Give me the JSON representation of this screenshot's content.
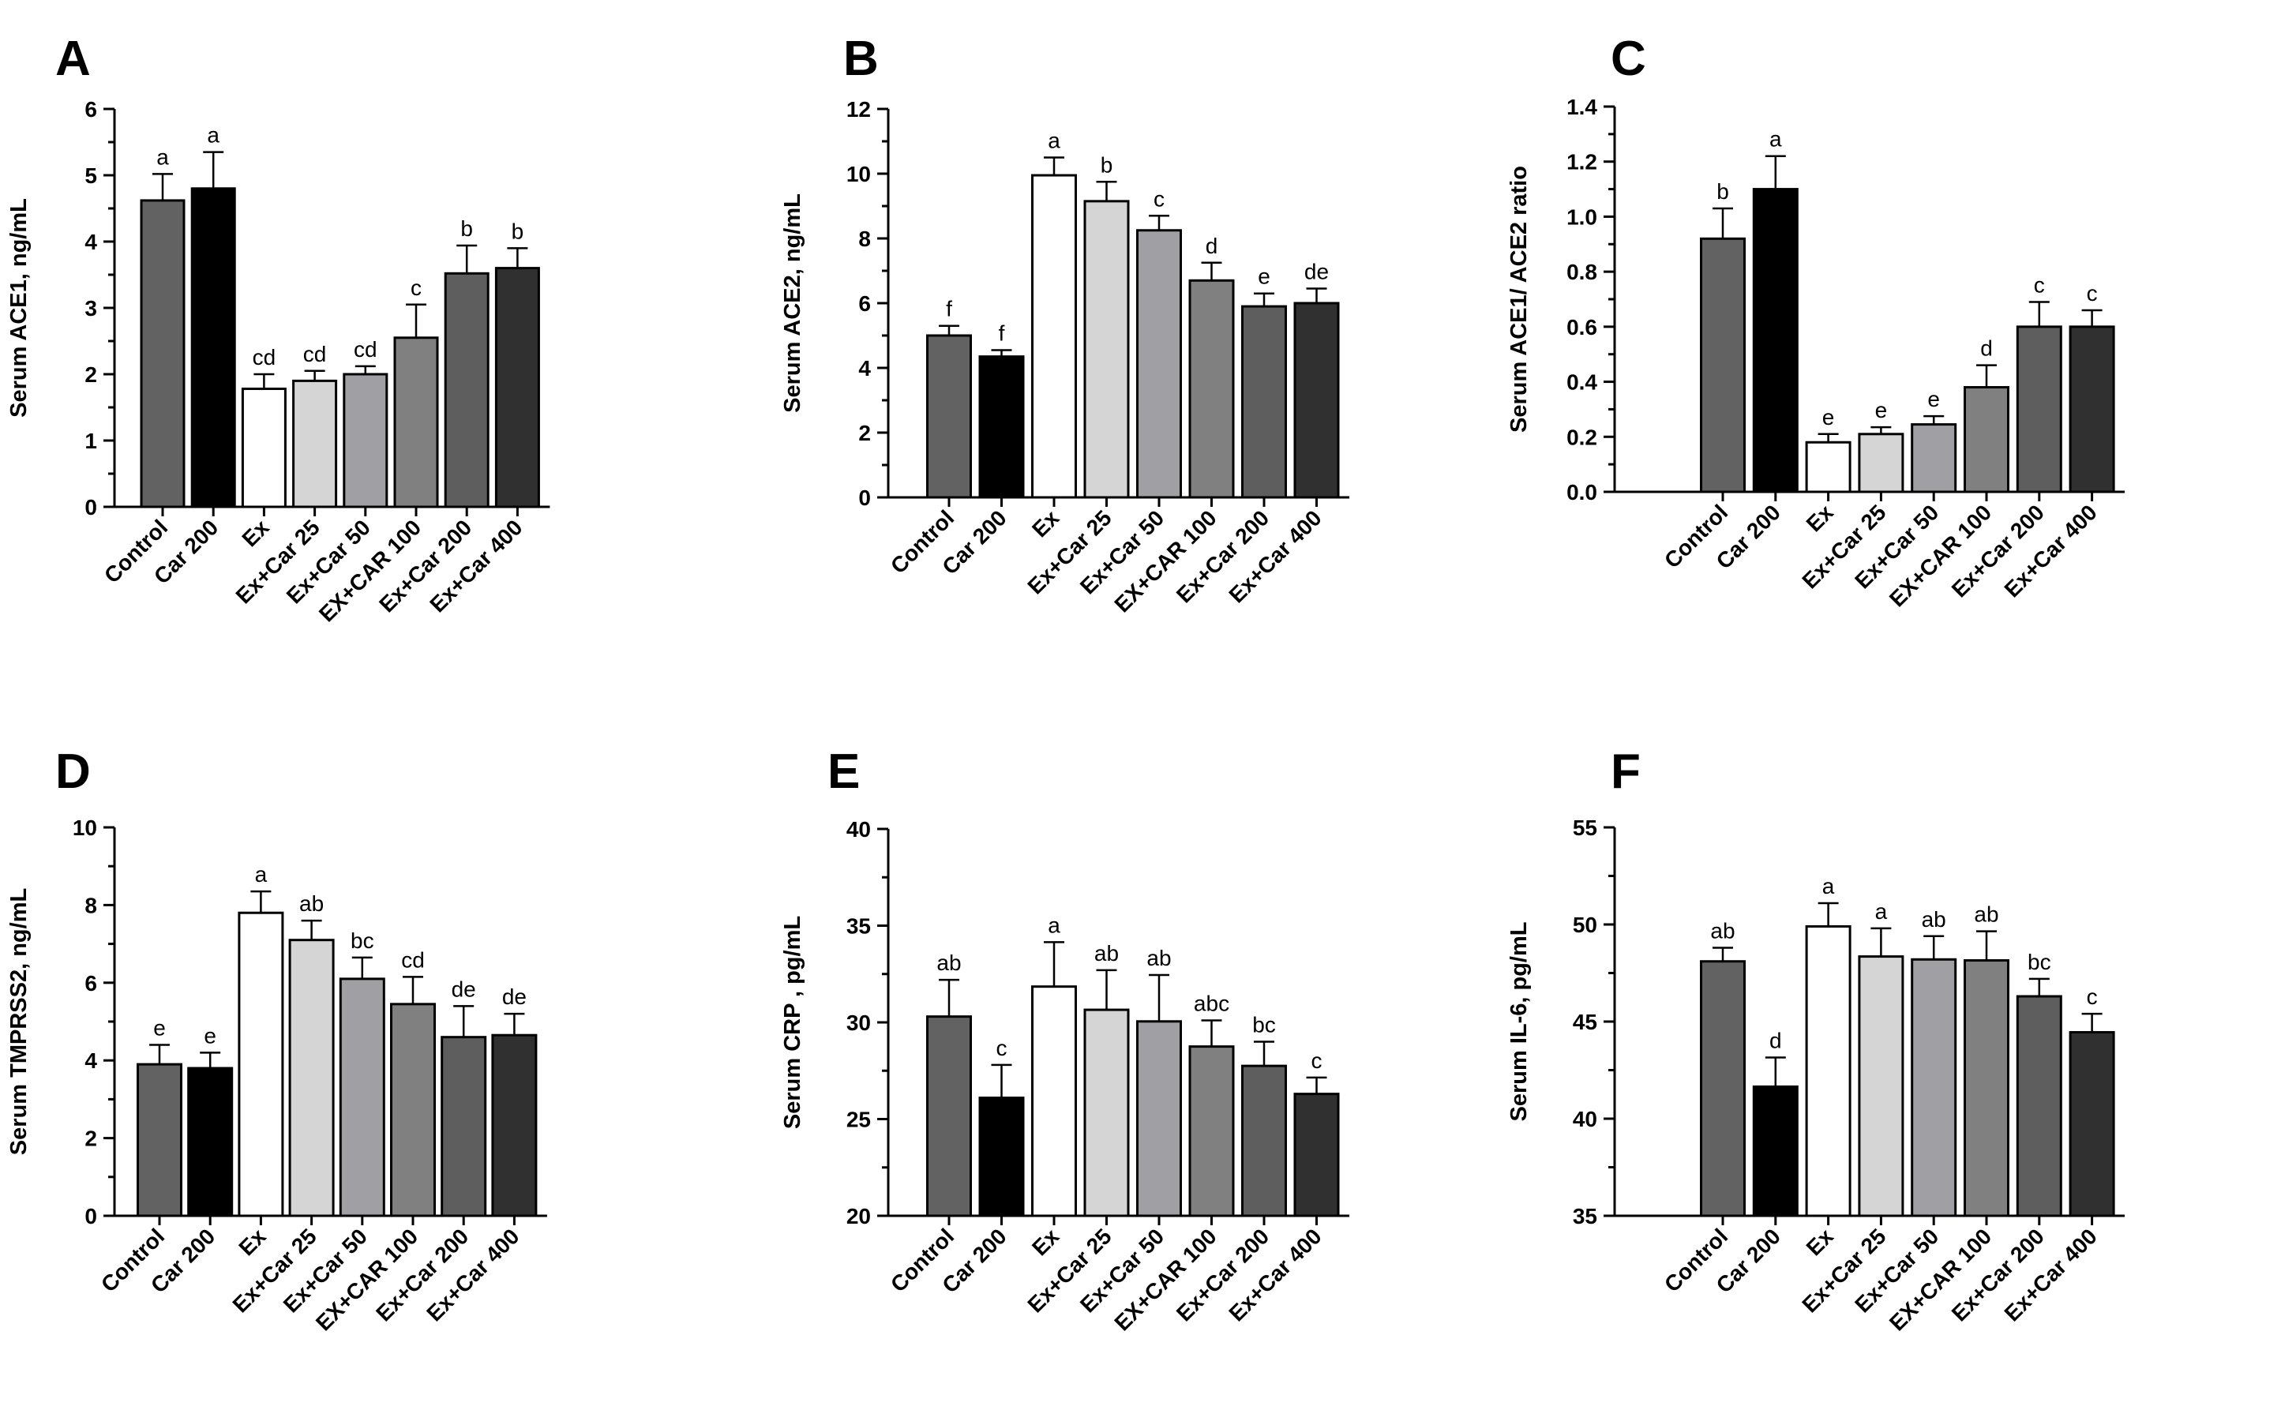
{
  "chart_data": [
    {
      "type": "bar",
      "panel": "A",
      "ylabel": "Serum ACE1, ng/mL",
      "ylim": [
        0,
        6
      ],
      "yticks": [
        "0",
        "1",
        "2",
        "3",
        "4",
        "5",
        "6"
      ],
      "categories": [
        "Control",
        "Car 200",
        "Ex",
        "Ex+Car 25",
        "Ex+Car 50",
        "EX+CAR 100",
        "Ex+Car 200",
        "Ex+Car 400"
      ],
      "values": [
        4.62,
        4.8,
        1.78,
        1.9,
        2.0,
        2.55,
        3.52,
        3.6
      ],
      "errors": [
        0.4,
        0.55,
        0.22,
        0.15,
        0.12,
        0.5,
        0.42,
        0.3
      ],
      "sig_labels": [
        "a",
        "a",
        "cd",
        "cd",
        "cd",
        "c",
        "b",
        "b"
      ],
      "colors": [
        "#626262",
        "#000000",
        "#ffffff",
        "#d5d5d5",
        "#a0a0a4",
        "#808080",
        "#5e5e5e",
        "#303030"
      ]
    },
    {
      "type": "bar",
      "panel": "B",
      "ylabel": "Serum ACE2, ng/mL",
      "ylim": [
        0,
        12
      ],
      "yticks": [
        "0",
        "2",
        "4",
        "6",
        "8",
        "10",
        "12"
      ],
      "categories": [
        "Control",
        "Car 200",
        "Ex",
        "Ex+Car 25",
        "Ex+Car 50",
        "EX+CAR 100",
        "Ex+Car 200",
        "Ex+Car 400"
      ],
      "values": [
        5.0,
        4.35,
        9.95,
        9.15,
        8.25,
        6.7,
        5.9,
        6.0
      ],
      "errors": [
        0.3,
        0.2,
        0.55,
        0.6,
        0.45,
        0.55,
        0.4,
        0.45
      ],
      "sig_labels": [
        "f",
        "f",
        "a",
        "b",
        "c",
        "d",
        "e",
        "de"
      ],
      "colors": [
        "#626262",
        "#000000",
        "#ffffff",
        "#d5d5d5",
        "#a0a0a4",
        "#808080",
        "#5e5e5e",
        "#303030"
      ]
    },
    {
      "type": "bar",
      "panel": "C",
      "ylabel": "Serum ACE1/ ACE2 ratio",
      "ylim": [
        0,
        1.4
      ],
      "yticks": [
        "0.0",
        "0.2",
        "0.4",
        "0.6",
        "0.8",
        "1.0",
        "1.2",
        "1.4"
      ],
      "categories": [
        "Control",
        "Car 200",
        "Ex",
        "Ex+Car 25",
        "Ex+Car 50",
        "EX+CAR 100",
        "Ex+Car 200",
        "Ex+Car 400"
      ],
      "values": [
        0.92,
        1.1,
        0.18,
        0.21,
        0.245,
        0.38,
        0.6,
        0.6
      ],
      "errors": [
        0.11,
        0.12,
        0.03,
        0.025,
        0.03,
        0.08,
        0.09,
        0.06
      ],
      "sig_labels": [
        "b",
        "a",
        "e",
        "e",
        "e",
        "d",
        "c",
        "c"
      ],
      "colors": [
        "#626262",
        "#000000",
        "#ffffff",
        "#d5d5d5",
        "#a0a0a4",
        "#808080",
        "#5e5e5e",
        "#303030"
      ]
    },
    {
      "type": "bar",
      "panel": "D",
      "ylabel": "Serum TMPRSS2, ng/mL",
      "ylim": [
        0,
        10
      ],
      "yticks": [
        "0",
        "2",
        "4",
        "6",
        "8",
        "10"
      ],
      "categories": [
        "Control",
        "Car 200",
        "Ex",
        "Ex+Car 25",
        "Ex+Car 50",
        "EX+CAR 100",
        "Ex+Car 200",
        "Ex+Car 400"
      ],
      "values": [
        3.9,
        3.8,
        7.8,
        7.1,
        6.1,
        5.45,
        4.6,
        4.65
      ],
      "errors": [
        0.5,
        0.4,
        0.55,
        0.5,
        0.55,
        0.7,
        0.8,
        0.55
      ],
      "sig_labels": [
        "e",
        "e",
        "a",
        "ab",
        "bc",
        "cd",
        "de",
        "de"
      ],
      "colors": [
        "#626262",
        "#000000",
        "#ffffff",
        "#d5d5d5",
        "#a0a0a4",
        "#808080",
        "#5e5e5e",
        "#303030"
      ]
    },
    {
      "type": "bar",
      "panel": "E",
      "ylabel": "Serum CRP , pg/mL",
      "ylim": [
        20,
        40
      ],
      "yticks": [
        "20",
        "25",
        "30",
        "35",
        "40"
      ],
      "categories": [
        "Control",
        "Car 200",
        "Ex",
        "Ex+Car 25",
        "Ex+Car 50",
        "EX+CAR 100",
        "Ex+Car 200",
        "Ex+Car 400"
      ],
      "values": [
        30.3,
        26.1,
        31.85,
        30.65,
        30.05,
        28.75,
        27.75,
        26.3
      ],
      "errors": [
        1.9,
        1.7,
        2.3,
        2.05,
        2.4,
        1.35,
        1.25,
        0.85
      ],
      "sig_labels": [
        "ab",
        "c",
        "a",
        "ab",
        "ab",
        "abc",
        "bc",
        "c"
      ],
      "colors": [
        "#626262",
        "#000000",
        "#ffffff",
        "#d5d5d5",
        "#a0a0a4",
        "#808080",
        "#5e5e5e",
        "#303030"
      ]
    },
    {
      "type": "bar",
      "panel": "F",
      "ylabel": "Serum IL-6, pg/mL",
      "ylim": [
        35,
        55
      ],
      "yticks": [
        "35",
        "40",
        "45",
        "50",
        "55"
      ],
      "categories": [
        "Control",
        "Car 200",
        "Ex",
        "Ex+Car 25",
        "Ex+Car 50",
        "EX+CAR 100",
        "Ex+Car 200",
        "Ex+Car 400"
      ],
      "values": [
        48.1,
        41.65,
        49.9,
        48.35,
        48.2,
        48.15,
        46.3,
        44.45
      ],
      "errors": [
        0.7,
        1.5,
        1.2,
        1.45,
        1.2,
        1.5,
        0.9,
        0.95
      ],
      "sig_labels": [
        "ab",
        "d",
        "a",
        "a",
        "ab",
        "ab",
        "bc",
        "c"
      ],
      "colors": [
        "#626262",
        "#000000",
        "#ffffff",
        "#d5d5d5",
        "#a0a0a4",
        "#808080",
        "#5e5e5e",
        "#303030"
      ]
    }
  ]
}
